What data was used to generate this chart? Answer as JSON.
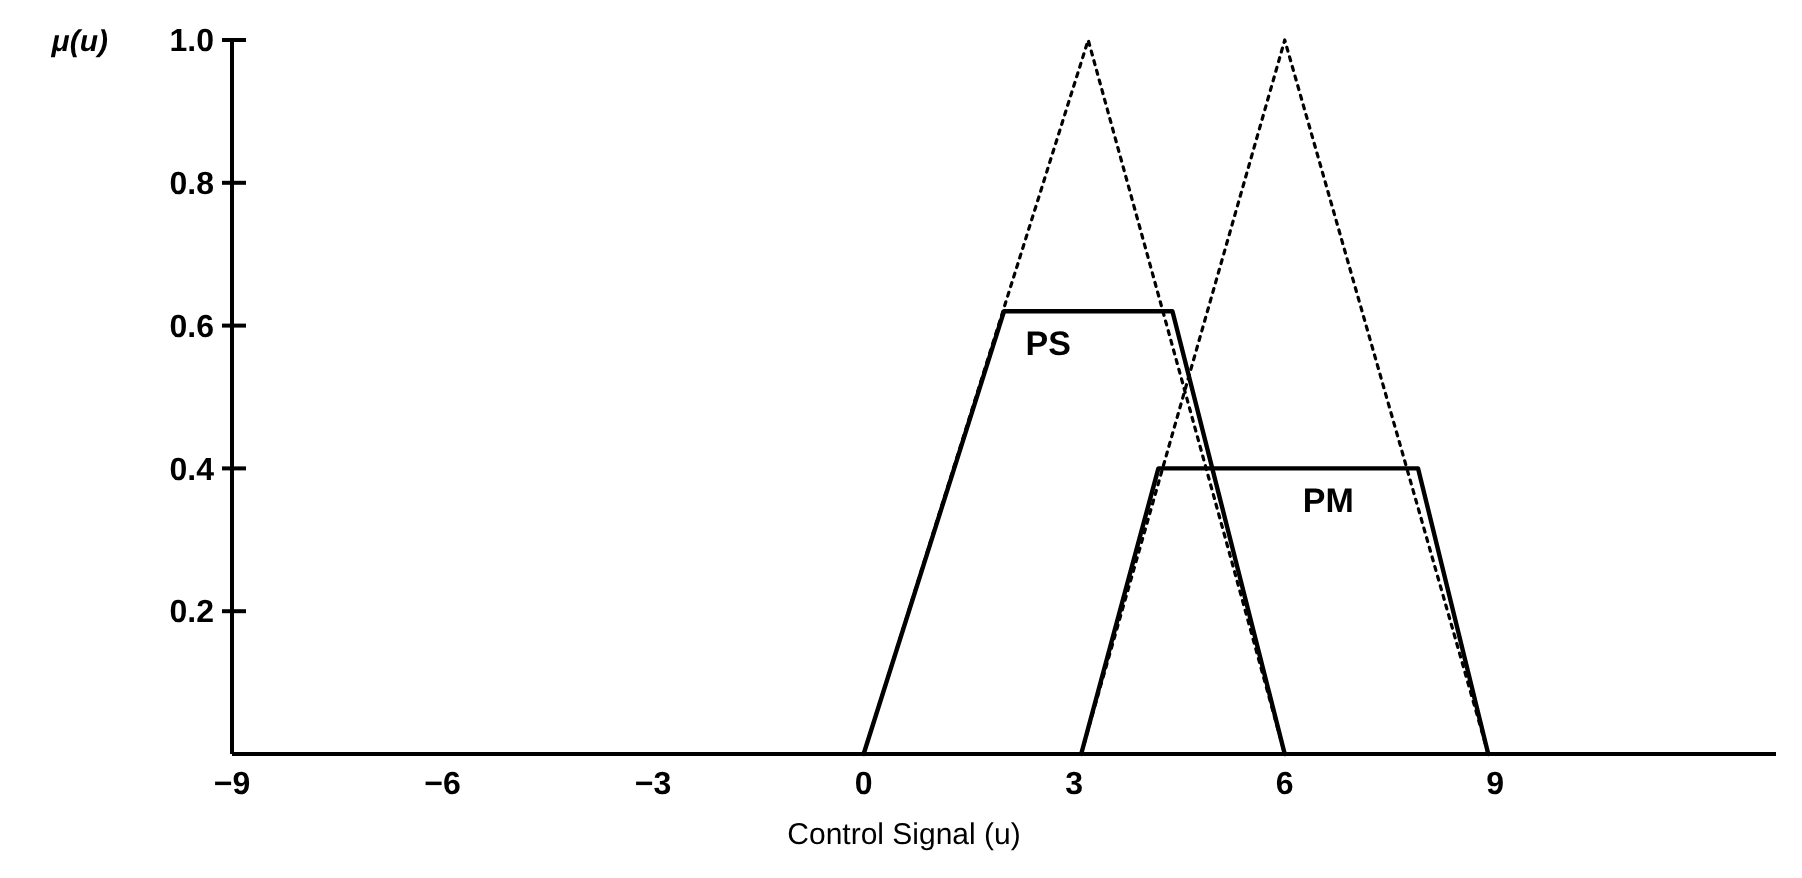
{
  "chart_data": {
    "type": "line",
    "xlabel": "Control Signal (u)",
    "ylabel": "μ(u)",
    "xlim": [
      -9,
      13
    ],
    "ylim": [
      0,
      1
    ],
    "xticks": [
      {
        "value": -9,
        "label": "−9"
      },
      {
        "value": -6,
        "label": "−6"
      },
      {
        "value": -3,
        "label": "−3"
      },
      0,
      3,
      6,
      9
    ],
    "yticks": [
      0.2,
      0.4,
      0.6,
      0.8,
      {
        "value": 1,
        "label": "1.0"
      }
    ],
    "grid": false,
    "series": [
      {
        "color": "#000000",
        "line_style": "dotted",
        "x": [
          0,
          3.2,
          6
        ],
        "values": [
          0,
          1,
          0
        ]
      },
      {
        "color": "#000000",
        "line_style": "dotted",
        "x": [
          3.1,
          6,
          8.9
        ],
        "values": [
          0,
          1,
          0
        ]
      },
      {
        "name": "PS",
        "color": "#000000",
        "line_style": "solid",
        "x": [
          0,
          2,
          4.4,
          6
        ],
        "values": [
          0,
          0.62,
          0.62,
          0
        ]
      },
      {
        "name": "PM",
        "color": "#000000",
        "line_style": "solid",
        "x": [
          3.1,
          4.2,
          7.9,
          8.9
        ],
        "values": [
          0,
          0.4,
          0.4,
          0
        ]
      }
    ]
  }
}
